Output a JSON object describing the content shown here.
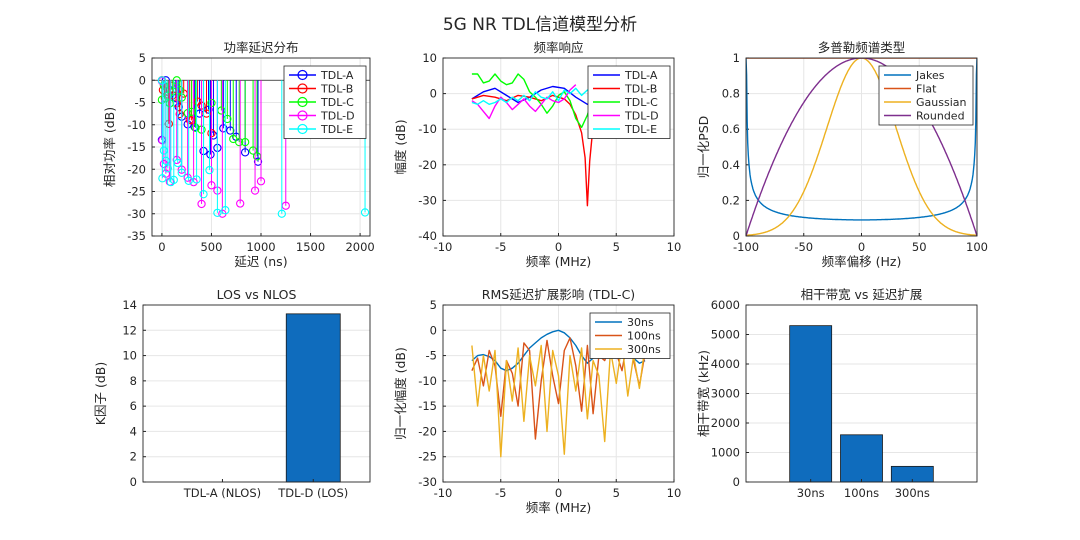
{
  "figure_title": "5G NR TDL信道模型分析",
  "chart_data": [
    {
      "id": "pdp",
      "type": "stem",
      "title": "功率延迟分布",
      "xlabel": "延迟 (ns)",
      "ylabel": "相对功率 (dB)",
      "xlim": [
        -100,
        2100
      ],
      "ylim": [
        -35,
        5
      ],
      "xticks": [
        0,
        500,
        1000,
        1500,
        2000
      ],
      "yticks": [
        -35,
        -30,
        -25,
        -20,
        -15,
        -10,
        -5,
        0,
        5
      ],
      "legend": [
        "TDL-A",
        "TDL-B",
        "TDL-C",
        "TDL-D",
        "TDL-E"
      ],
      "legend_position": "top-right",
      "series": [
        {
          "name": "TDL-A",
          "color": "#0000ff",
          "delays": [
            0,
            40,
            80,
            140,
            170,
            200,
            260,
            330,
            380,
            420,
            470,
            490,
            520,
            560,
            620,
            690,
            750,
            840,
            970
          ],
          "powers": [
            -13.4,
            0,
            -2.2,
            -4.0,
            -6.0,
            -8.2,
            -9.9,
            -10.5,
            -7.5,
            -15.9,
            -6.6,
            -16.7,
            -12.4,
            -15.2,
            -10.8,
            -11.3,
            -12.7,
            -16.2,
            -18.3
          ]
        },
        {
          "name": "TDL-B",
          "color": "#ff0000",
          "delays": [
            0,
            10,
            30,
            60,
            70,
            90,
            110,
            150,
            180,
            220,
            280,
            300,
            360,
            400,
            450,
            500
          ],
          "powers": [
            0,
            -2.2,
            -4.0,
            -3.2,
            -9.8,
            -1.2,
            -3.4,
            -5.2,
            -7.6,
            -3.0,
            -8.9,
            -9.0,
            -4.8,
            -5.7,
            -7.5,
            -11.9
          ]
        },
        {
          "name": "TDL-C",
          "color": "#00ff00",
          "delays": [
            0,
            20,
            60,
            80,
            110,
            150,
            180,
            200,
            260,
            300,
            340,
            400,
            500,
            600,
            660,
            720,
            780,
            840,
            920,
            960
          ],
          "powers": [
            -4.4,
            -1.2,
            -3.5,
            -5.2,
            -2.5,
            0,
            -2.2,
            -3.9,
            -7.4,
            -7.1,
            -10.7,
            -11.1,
            -5.1,
            -6.8,
            -8.7,
            -13.2,
            -13.9,
            -13.9,
            -15.8,
            -17.1
          ]
        },
        {
          "name": "TDL-D",
          "color": "#ff00ff",
          "delays": [
            0,
            5,
            20,
            40,
            80,
            150,
            200,
            260,
            320,
            400,
            500,
            560,
            610,
            790,
            940,
            1000,
            1250
          ],
          "powers": [
            -0.2,
            -13.5,
            -18.8,
            -21.0,
            -22.8,
            -17.9,
            -20.1,
            -21.9,
            -22.9,
            -27.8,
            -23.6,
            -24.8,
            -30.0,
            -27.7,
            -24.8,
            -22.7,
            -28.2
          ]
        },
        {
          "name": "TDL-E",
          "color": "#00ffff",
          "delays": [
            0,
            5,
            20,
            40,
            60,
            90,
            120,
            160,
            200,
            270,
            350,
            420,
            480,
            560,
            640,
            1210,
            2050
          ],
          "powers": [
            -0.03,
            -22.03,
            -15.8,
            -18.1,
            -19.8,
            -22.9,
            -22.4,
            -18.6,
            -20.8,
            -22.6,
            -22.3,
            -25.6,
            -20.2,
            -29.8,
            -29.2,
            -30.0,
            -29.7
          ]
        }
      ]
    },
    {
      "id": "freq",
      "type": "line",
      "title": "频率响应",
      "xlabel": "频率 (MHz)",
      "ylabel": "幅度 (dB)",
      "xlim": [
        -10,
        10
      ],
      "ylim": [
        -40,
        10
      ],
      "xticks": [
        -10,
        -5,
        0,
        5,
        10
      ],
      "yticks": [
        -40,
        -30,
        -20,
        -10,
        0,
        10
      ],
      "legend": [
        "TDL-A",
        "TDL-B",
        "TDL-C",
        "TDL-D",
        "TDL-E"
      ],
      "legend_position": "top-right",
      "series": [
        {
          "name": "TDL-A",
          "color": "#0000ff",
          "x": [
            -7.5,
            -6.5,
            -5.5,
            -4.5,
            -3.5,
            -2.5,
            -1.5,
            -0.5,
            0.5,
            1.5,
            2.5,
            3.5,
            4.5,
            5.5,
            6.5,
            7.5
          ],
          "y": [
            -1.5,
            0.5,
            1.5,
            -0.5,
            -2.5,
            -1.0,
            1.0,
            2.0,
            1.5,
            -1.0,
            -3.0,
            -2.0,
            0.5,
            1.5,
            0.5,
            -1.0
          ]
        },
        {
          "name": "TDL-B",
          "color": "#ff0000",
          "x": [
            -7.5,
            -6.5,
            -5.5,
            -4.5,
            -3.5,
            -2.5,
            -1.5,
            -0.5,
            0.5,
            1.0,
            1.5,
            2.0,
            2.3,
            2.5,
            2.7,
            3.0,
            3.5
          ],
          "y": [
            -1.5,
            -0.5,
            -1.0,
            -2.0,
            -0.5,
            -1.0,
            -2.0,
            -0.5,
            -1.5,
            -3.0,
            -6.0,
            -11.0,
            -18.0,
            -31.5,
            -19.0,
            -9.0,
            1.0
          ]
        },
        {
          "name": "TDL-C",
          "color": "#00ff00",
          "x": [
            -7.5,
            -7.0,
            -6.5,
            -6.0,
            -5.5,
            -5.0,
            -4.5,
            -4.0,
            -3.5,
            -3.0,
            -2.5,
            -2.0,
            -1.5,
            -1.0,
            -0.5,
            0.0,
            0.5,
            1.0,
            1.5,
            2.0,
            2.5,
            3.0,
            3.5,
            4.0
          ],
          "y": [
            5.5,
            5.5,
            3.0,
            3.5,
            5.5,
            3.5,
            2.5,
            3.0,
            5.5,
            4.0,
            0.5,
            -1.0,
            -3.0,
            -5.5,
            -3.5,
            -0.5,
            0.5,
            -2.0,
            -7.0,
            -9.5,
            -6.0,
            -1.0,
            1.5,
            1.0
          ]
        },
        {
          "name": "TDL-D",
          "color": "#ff00ff",
          "x": [
            -7.5,
            -7.0,
            -6.5,
            -6.0,
            -5.5,
            -5.0,
            -4.5,
            -4.0,
            -3.5,
            -3.0,
            -2.5,
            -2.0,
            -1.5,
            -1.0,
            -0.5,
            0.0,
            0.5,
            1.0,
            1.5
          ],
          "y": [
            -2.0,
            -3.0,
            -5.0,
            -7.0,
            -3.5,
            -1.0,
            -2.5,
            -4.5,
            -3.0,
            -1.5,
            -3.5,
            -5.0,
            -3.0,
            -1.0,
            -2.0,
            -2.5,
            -1.5,
            1.0,
            2.5
          ]
        },
        {
          "name": "TDL-E",
          "color": "#00ffff",
          "x": [
            -7.5,
            -7.0,
            -6.5,
            -6.0,
            -5.5,
            -5.0,
            -4.5,
            -4.0,
            -3.5,
            -3.0,
            -2.5,
            -2.0,
            -1.5,
            -1.0,
            -0.5,
            0.0,
            0.5,
            1.0,
            1.5,
            2.0,
            2.5,
            3.0,
            3.5,
            4.0,
            4.5,
            5.0,
            5.5
          ],
          "y": [
            -2.5,
            -3.0,
            -2.0,
            -3.0,
            -2.5,
            -1.5,
            -2.5,
            -1.0,
            -2.0,
            -0.5,
            -2.0,
            0.5,
            -1.0,
            -1.5,
            0.5,
            -2.0,
            1.0,
            0.0,
            1.5,
            -0.5,
            1.0,
            0.5,
            -0.5,
            1.5,
            0.5,
            1.0,
            0.5
          ]
        }
      ]
    },
    {
      "id": "doppler",
      "type": "line",
      "title": "多普勒频谱类型",
      "xlabel": "频率偏移 (Hz)",
      "ylabel": "归一化PSD",
      "xlim": [
        -100,
        100
      ],
      "ylim": [
        0,
        1
      ],
      "xticks": [
        -100,
        -50,
        0,
        50,
        100
      ],
      "yticks": [
        0,
        0.2,
        0.4,
        0.6,
        0.8,
        1
      ],
      "legend": [
        "Jakes",
        "Flat",
        "Gaussian",
        "Rounded"
      ],
      "legend_position": "top-right",
      "series": [
        {
          "name": "Jakes",
          "color": "#0072bd",
          "fn": "jakes"
        },
        {
          "name": "Flat",
          "color": "#d95319",
          "fn": "flat"
        },
        {
          "name": "Gaussian",
          "color": "#edb120",
          "fn": "gaussian"
        },
        {
          "name": "Rounded",
          "color": "#7e2f8e",
          "fn": "rounded"
        }
      ]
    },
    {
      "id": "kfactor",
      "type": "bar",
      "title": "LOS vs NLOS",
      "xlabel": "",
      "ylabel": "K因子 (dB)",
      "ylim": [
        0,
        14
      ],
      "yticks": [
        0,
        2,
        4,
        6,
        8,
        10,
        12,
        14
      ],
      "categories": [
        "TDL-A (NLOS)",
        "TDL-D (LOS)"
      ],
      "values": [
        0,
        13.3
      ],
      "color": "#0f6cbd"
    },
    {
      "id": "rms",
      "type": "line",
      "title": "RMS延迟扩展影响 (TDL-C)",
      "xlabel": "频率 (MHz)",
      "ylabel": "归一化幅度 (dB)",
      "xlim": [
        -10,
        10
      ],
      "ylim": [
        -30,
        5
      ],
      "xticks": [
        -10,
        -5,
        0,
        5,
        10
      ],
      "yticks": [
        -30,
        -25,
        -20,
        -15,
        -10,
        -5,
        0,
        5
      ],
      "legend": [
        "30ns",
        "100ns",
        "300ns"
      ],
      "legend_position": "top-right",
      "series": [
        {
          "name": "30ns",
          "color": "#0072bd",
          "x": [
            -7.5,
            -7.0,
            -6.5,
            -6.0,
            -5.5,
            -5.0,
            -4.5,
            -4.0,
            -3.5,
            -3.0,
            -2.5,
            -2.0,
            -1.5,
            -1.0,
            -0.5,
            0.0,
            0.5,
            1.0,
            1.5,
            2.0,
            2.5,
            3.0,
            3.5,
            4.0,
            4.5,
            5.0,
            5.5,
            6.0,
            6.5,
            7.0,
            7.5
          ],
          "y": [
            -6.0,
            -5.0,
            -4.8,
            -5.2,
            -6.0,
            -7.5,
            -8.0,
            -7.5,
            -6.5,
            -5.0,
            -3.5,
            -2.5,
            -1.5,
            -0.8,
            -0.3,
            0.0,
            -0.5,
            -1.5,
            -3.0,
            -5.0,
            -6.5,
            -5.5,
            -3.0,
            -2.5,
            -3.0,
            -3.5,
            -2.5,
            -3.5,
            -5.5,
            -6.5,
            -6.0
          ]
        },
        {
          "name": "100ns",
          "color": "#d95319",
          "x": [
            -7.5,
            -7.0,
            -6.5,
            -6.0,
            -5.5,
            -5.0,
            -4.5,
            -4.0,
            -3.5,
            -3.0,
            -2.5,
            -2.0,
            -1.5,
            -1.0,
            -0.5,
            0.0,
            0.5,
            1.0,
            1.5,
            2.0,
            2.5,
            3.0,
            3.5,
            4.0,
            4.5,
            5.0,
            5.5,
            6.0,
            6.5,
            7.0,
            7.5
          ],
          "y": [
            -8.0,
            -5.5,
            -11.0,
            -4.0,
            -7.0,
            -17.0,
            -6.0,
            -8.5,
            -15.0,
            -2.5,
            -4.0,
            -21.5,
            -10.0,
            -2.0,
            -9.0,
            -14.5,
            -4.0,
            -1.5,
            -7.0,
            -16.0,
            -3.0,
            -16.5,
            -5.0,
            -6.0,
            -2.5,
            -4.5,
            -8.0,
            -1.5,
            -6.0,
            -11.0,
            -4.5
          ]
        },
        {
          "name": "300ns",
          "color": "#edb120",
          "x": [
            -7.5,
            -7.0,
            -6.5,
            -6.0,
            -5.5,
            -5.0,
            -4.5,
            -4.0,
            -3.5,
            -3.0,
            -2.5,
            -2.0,
            -1.5,
            -1.0,
            -0.5,
            0.0,
            0.5,
            1.0,
            1.5,
            2.0,
            2.5,
            3.0,
            3.5,
            4.0,
            4.5,
            5.0,
            5.5,
            6.0,
            6.5,
            7.0,
            7.5
          ],
          "y": [
            -3.0,
            -15.0,
            -5.0,
            -12.0,
            -4.0,
            -25.0,
            -6.0,
            -14.0,
            -3.5,
            -18.0,
            -5.0,
            -11.0,
            -3.0,
            -20.0,
            -4.0,
            -9.0,
            -24.5,
            -5.0,
            -12.0,
            -3.5,
            -17.5,
            -6.0,
            -9.0,
            -22.0,
            -4.0,
            -10.5,
            -2.5,
            -13.0,
            -5.0,
            -11.5,
            -3.0
          ]
        }
      ]
    },
    {
      "id": "coherence",
      "type": "bar",
      "title": "相干带宽 vs 延迟扩展",
      "xlabel": "",
      "ylabel": "相干带宽 (kHz)",
      "ylim": [
        0,
        6000
      ],
      "yticks": [
        0,
        1000,
        2000,
        3000,
        4000,
        5000,
        6000
      ],
      "categories": [
        "30ns",
        "100ns",
        "300ns"
      ],
      "values": [
        5300,
        1600,
        530
      ],
      "color": "#0f6cbd"
    }
  ]
}
